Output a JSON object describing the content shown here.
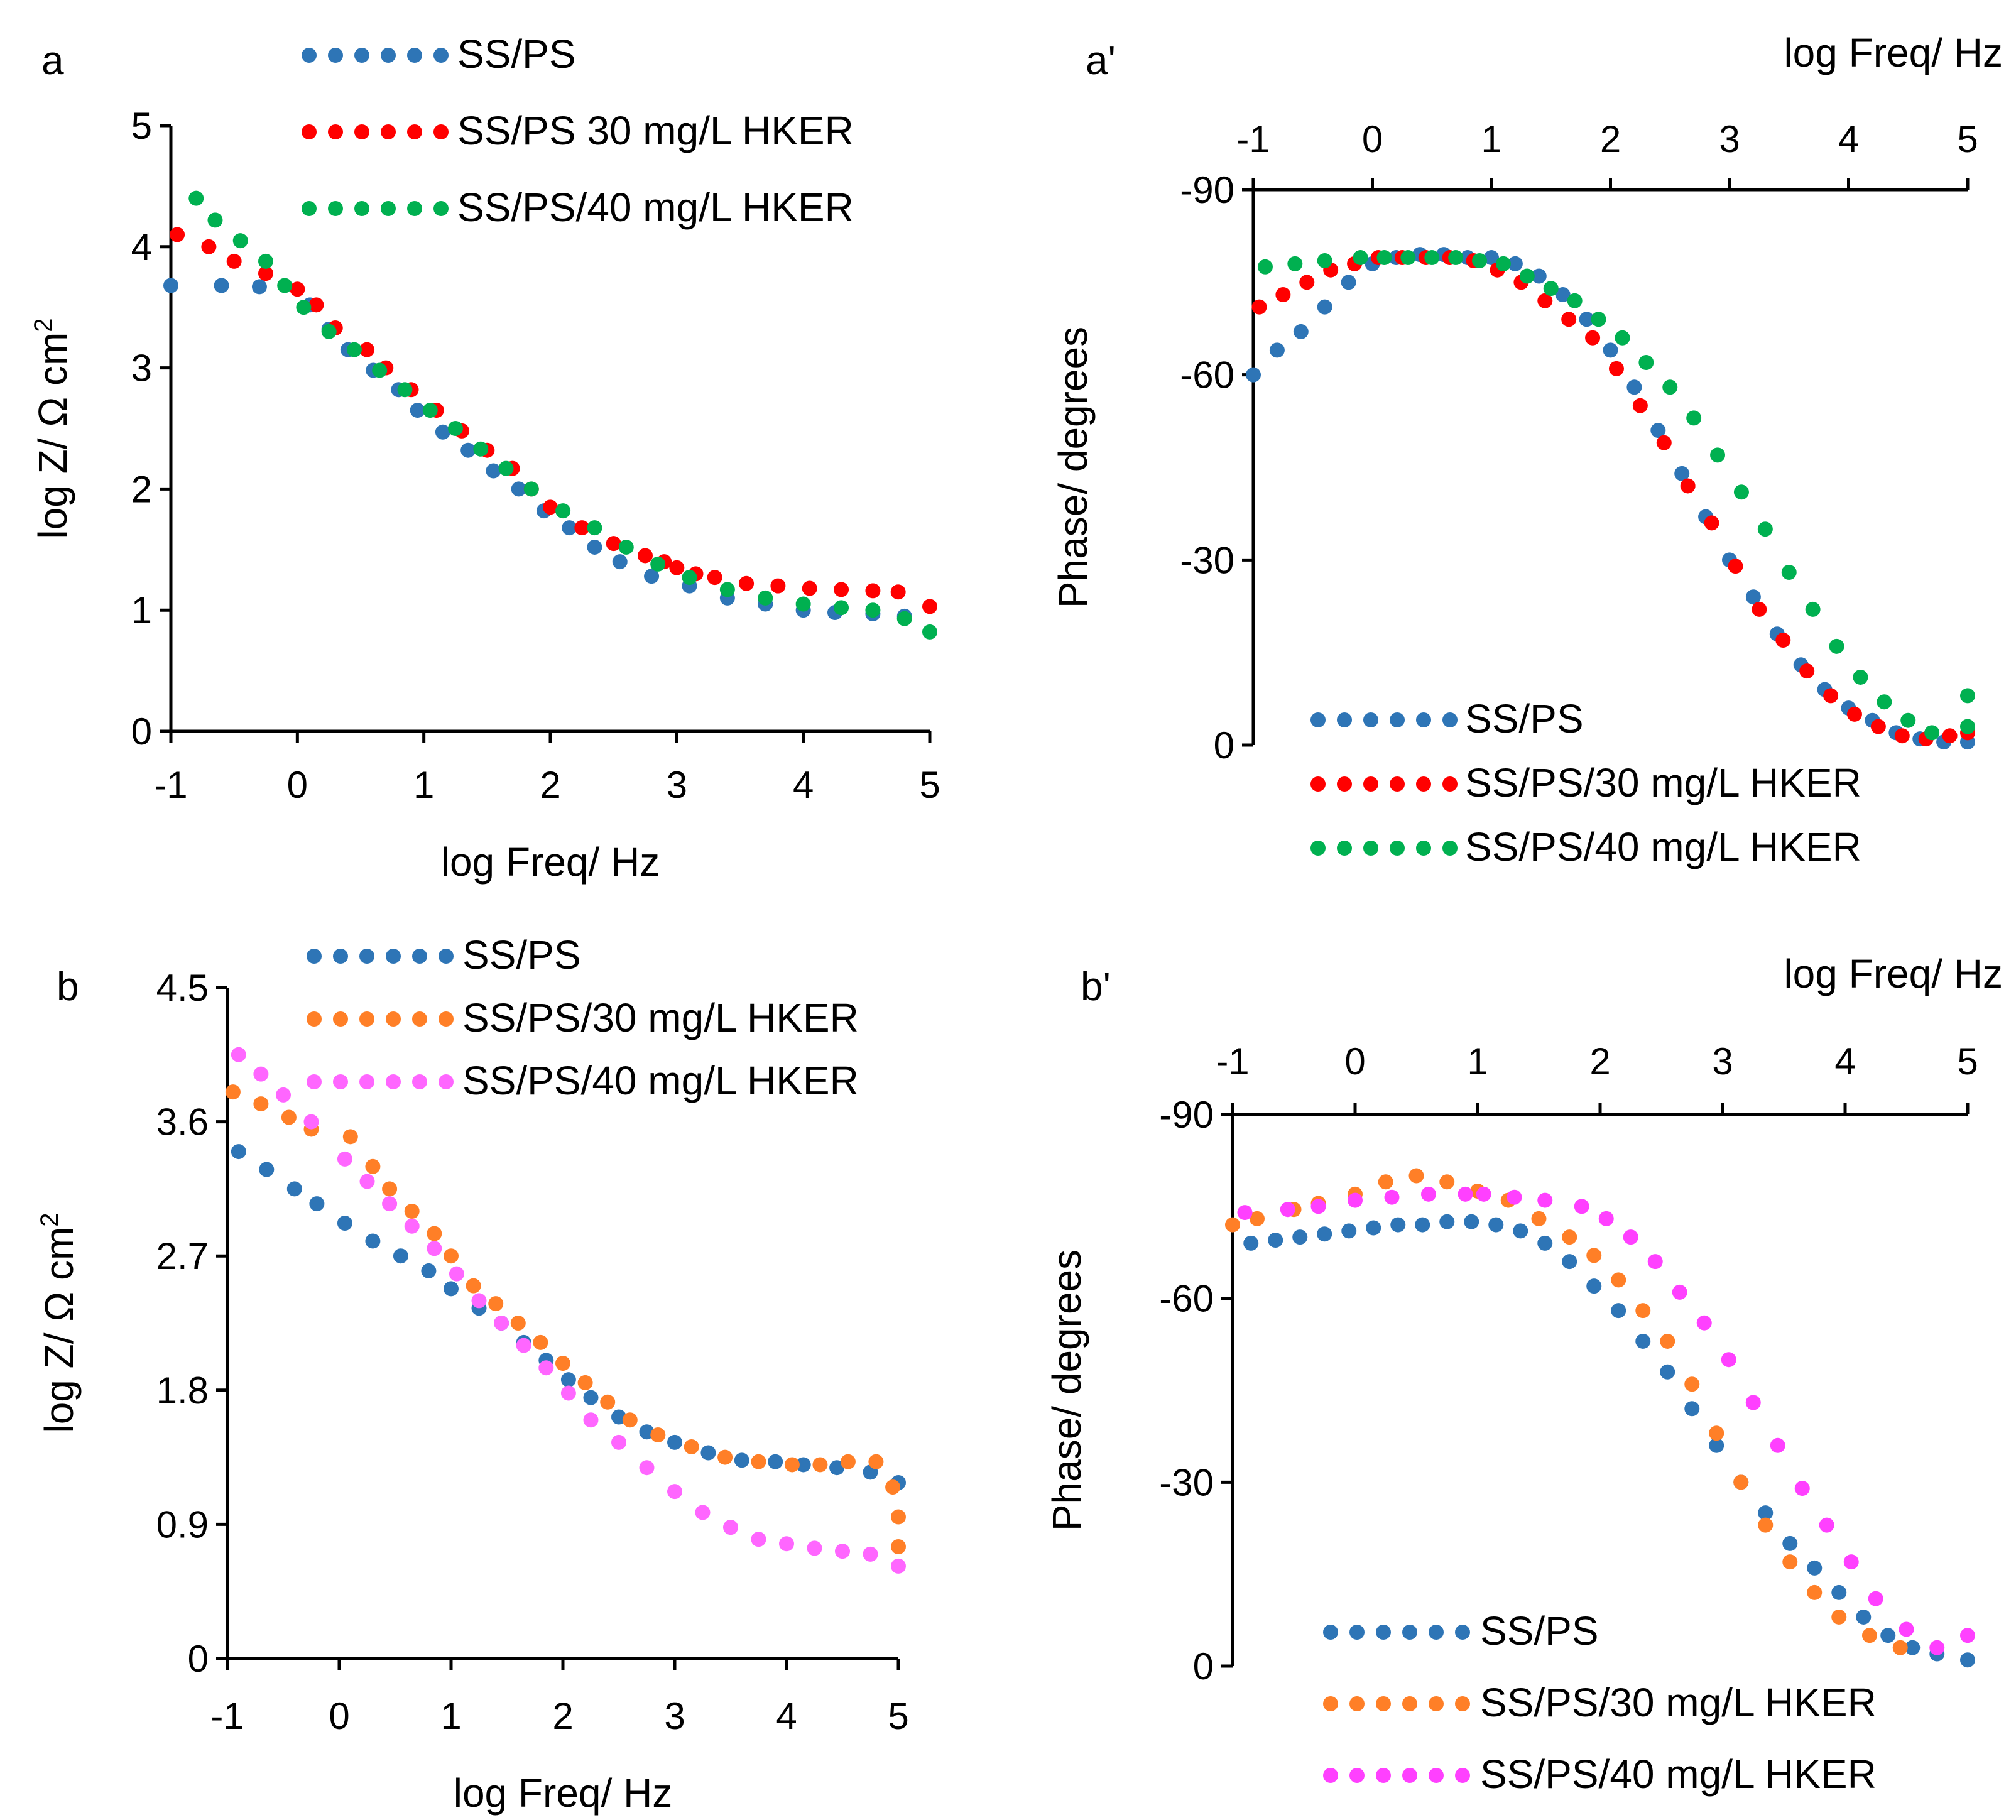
{
  "chart_data": [
    {
      "panel": "a",
      "type": "scatter",
      "xlabel": "log Freq/ Hz",
      "ylabel": "log Z/ Ω cm",
      "ylabel_sup": "2",
      "xlim": [
        -1,
        5
      ],
      "ylim": [
        0,
        5
      ],
      "xticks": [
        "-1",
        "0",
        "1",
        "2",
        "3",
        "4",
        "5"
      ],
      "yticks": [
        "0",
        "1",
        "2",
        "3",
        "4",
        "5"
      ],
      "legend": "top",
      "series": [
        {
          "name": "SS/PS",
          "color": "#2E75B6",
          "x": [
            -1.0,
            -0.6,
            -0.3,
            0.1,
            0.25,
            0.4,
            0.6,
            0.8,
            0.95,
            1.15,
            1.35,
            1.55,
            1.75,
            1.95,
            2.15,
            2.35,
            2.55,
            2.8,
            3.1,
            3.4,
            3.7,
            4.0,
            4.25,
            4.55,
            4.8
          ],
          "y": [
            3.68,
            3.68,
            3.67,
            3.52,
            3.32,
            3.15,
            2.98,
            2.82,
            2.65,
            2.47,
            2.32,
            2.15,
            2.0,
            1.82,
            1.68,
            1.52,
            1.4,
            1.28,
            1.2,
            1.1,
            1.05,
            1.0,
            0.98,
            0.97,
            0.95
          ]
        },
        {
          "name": "SS/PS 30 mg/L HKER",
          "color": "#FF0000",
          "x": [
            -0.95,
            -0.7,
            -0.5,
            -0.25,
            0.0,
            0.15,
            0.3,
            0.55,
            0.7,
            0.9,
            1.1,
            1.3,
            1.5,
            1.7,
            1.85,
            2.0,
            2.25,
            2.5,
            2.75,
            2.9,
            3.0,
            3.15,
            3.3,
            3.55,
            3.8,
            4.05,
            4.3,
            4.55,
            4.75,
            5.0
          ],
          "y": [
            4.1,
            4.0,
            3.88,
            3.78,
            3.65,
            3.52,
            3.33,
            3.15,
            3.0,
            2.82,
            2.65,
            2.48,
            2.32,
            2.17,
            2.0,
            1.85,
            1.68,
            1.55,
            1.45,
            1.4,
            1.35,
            1.3,
            1.27,
            1.22,
            1.2,
            1.18,
            1.17,
            1.16,
            1.15,
            1.03
          ]
        },
        {
          "name": "SS/PS/40 mg/L HKER",
          "color": "#00B050",
          "x": [
            -0.8,
            -0.65,
            -0.45,
            -0.25,
            -0.1,
            0.05,
            0.25,
            0.45,
            0.65,
            0.85,
            1.05,
            1.25,
            1.45,
            1.65,
            1.85,
            2.1,
            2.35,
            2.6,
            2.85,
            3.1,
            3.4,
            3.7,
            4.0,
            4.3,
            4.55,
            4.8,
            5.0
          ],
          "y": [
            4.4,
            4.22,
            4.05,
            3.88,
            3.68,
            3.5,
            3.3,
            3.15,
            2.98,
            2.82,
            2.65,
            2.5,
            2.33,
            2.17,
            2.0,
            1.82,
            1.68,
            1.52,
            1.38,
            1.27,
            1.17,
            1.1,
            1.05,
            1.02,
            1.0,
            0.93,
            0.82
          ]
        }
      ]
    },
    {
      "panel": "a'",
      "type": "scatter",
      "xlabel": "log Freq/ Hz",
      "ylabel": "Phase/ degrees",
      "xlim": [
        -1,
        5
      ],
      "ylim": [
        -90,
        0
      ],
      "xticks": [
        "-1",
        "0",
        "1",
        "2",
        "3",
        "4",
        "5"
      ],
      "yticks": [
        "-90",
        "-60",
        "-30",
        "0"
      ],
      "xaxis_position": "top",
      "legend": "bottom",
      "series": [
        {
          "name": "SS/PS",
          "color": "#2E75B6",
          "x": [
            -1.0,
            -0.8,
            -0.6,
            -0.4,
            -0.2,
            0.0,
            0.2,
            0.4,
            0.6,
            0.8,
            1.0,
            1.2,
            1.4,
            1.6,
            1.8,
            2.0,
            2.2,
            2.4,
            2.6,
            2.8,
            3.0,
            3.2,
            3.4,
            3.6,
            3.8,
            4.0,
            4.2,
            4.4,
            4.6,
            4.8,
            5.0
          ],
          "y": [
            -60,
            -64,
            -67,
            -71,
            -75,
            -78,
            -79,
            -79.5,
            -79.5,
            -79,
            -79,
            -78,
            -76,
            -73,
            -69,
            -64,
            -58,
            -51,
            -44,
            -37,
            -30,
            -24,
            -18,
            -13,
            -9,
            -6,
            -4,
            -2,
            -1,
            -0.5,
            -0.5
          ]
        },
        {
          "name": "SS/PS/30 mg/L HKER",
          "color": "#FF0000",
          "x": [
            -0.95,
            -0.75,
            -0.55,
            -0.35,
            -0.15,
            0.05,
            0.25,
            0.45,
            0.65,
            0.85,
            1.05,
            1.25,
            1.45,
            1.65,
            1.85,
            2.05,
            2.25,
            2.45,
            2.65,
            2.85,
            3.05,
            3.25,
            3.45,
            3.65,
            3.85,
            4.05,
            4.25,
            4.45,
            4.65,
            4.85,
            5.0
          ],
          "y": [
            -71,
            -73,
            -75,
            -77,
            -78,
            -79,
            -79,
            -79,
            -79,
            -78.5,
            -77,
            -75,
            -72,
            -69,
            -66,
            -61,
            -55,
            -49,
            -42,
            -36,
            -29,
            -22,
            -17,
            -12,
            -8,
            -5,
            -3,
            -1.5,
            -1,
            -1.5,
            -2
          ]
        },
        {
          "name": "SS/PS/40 mg/L HKER",
          "color": "#00B050",
          "x": [
            -0.9,
            -0.65,
            -0.4,
            -0.1,
            0.1,
            0.3,
            0.5,
            0.7,
            0.9,
            1.1,
            1.3,
            1.5,
            1.7,
            1.9,
            2.1,
            2.3,
            2.5,
            2.7,
            2.9,
            3.1,
            3.3,
            3.5,
            3.7,
            3.9,
            4.1,
            4.3,
            4.5,
            4.7,
            5.0,
            5.0
          ],
          "y": [
            -77.5,
            -78,
            -78.5,
            -79,
            -79,
            -79,
            -79,
            -79,
            -78.5,
            -78,
            -76,
            -74,
            -72,
            -69,
            -66,
            -62,
            -58,
            -53,
            -47,
            -41,
            -35,
            -28,
            -22,
            -16,
            -11,
            -7,
            -4,
            -2,
            -3,
            -8
          ]
        }
      ]
    },
    {
      "panel": "b",
      "type": "scatter",
      "xlabel": "log Freq/ Hz",
      "ylabel": "log Z/ Ω cm",
      "ylabel_sup": "2",
      "xlim": [
        -1,
        5
      ],
      "ylim": [
        0,
        4.5
      ],
      "xticks": [
        "-1",
        "0",
        "1",
        "2",
        "3",
        "4",
        "5"
      ],
      "yticks": [
        "0",
        "0.9",
        "1.8",
        "2.7",
        "3.6",
        "4.5"
      ],
      "legend": "top",
      "series": [
        {
          "name": "SS/PS",
          "color": "#2E75B6",
          "x": [
            -0.9,
            -0.65,
            -0.4,
            -0.2,
            0.05,
            0.3,
            0.55,
            0.8,
            1.0,
            1.25,
            1.45,
            1.65,
            1.85,
            2.05,
            2.25,
            2.5,
            2.75,
            3.0,
            3.3,
            3.6,
            3.9,
            4.15,
            4.45,
            4.75,
            5.0
          ],
          "y": [
            3.4,
            3.28,
            3.15,
            3.05,
            2.92,
            2.8,
            2.7,
            2.6,
            2.48,
            2.35,
            2.25,
            2.12,
            2.0,
            1.87,
            1.75,
            1.62,
            1.52,
            1.45,
            1.38,
            1.33,
            1.32,
            1.3,
            1.28,
            1.25,
            1.18
          ]
        },
        {
          "name": "SS/PS/30 mg/L HKER",
          "color": "#FF7F27",
          "x": [
            -0.95,
            -0.7,
            -0.45,
            -0.25,
            0.1,
            0.3,
            0.45,
            0.65,
            0.85,
            1.0,
            1.2,
            1.4,
            1.6,
            1.8,
            2.0,
            2.2,
            2.4,
            2.6,
            2.85,
            3.15,
            3.45,
            3.75,
            4.05,
            4.3,
            4.55,
            4.8,
            4.95,
            5.0,
            5.0
          ],
          "y": [
            3.8,
            3.72,
            3.63,
            3.55,
            3.5,
            3.3,
            3.15,
            3.0,
            2.85,
            2.7,
            2.5,
            2.38,
            2.25,
            2.12,
            1.98,
            1.85,
            1.72,
            1.6,
            1.5,
            1.42,
            1.35,
            1.32,
            1.3,
            1.3,
            1.32,
            1.32,
            1.15,
            0.95,
            0.75
          ]
        },
        {
          "name": "SS/PS/40 mg/L HKER",
          "color": "#FF66FF",
          "x": [
            -0.9,
            -0.7,
            -0.5,
            -0.25,
            0.05,
            0.25,
            0.45,
            0.65,
            0.85,
            1.05,
            1.25,
            1.45,
            1.65,
            1.85,
            2.05,
            2.25,
            2.5,
            2.75,
            3.0,
            3.25,
            3.5,
            3.75,
            4.0,
            4.25,
            4.5,
            4.75,
            5.0
          ],
          "y": [
            4.05,
            3.92,
            3.78,
            3.6,
            3.35,
            3.2,
            3.05,
            2.9,
            2.75,
            2.58,
            2.4,
            2.25,
            2.1,
            1.95,
            1.78,
            1.6,
            1.45,
            1.28,
            1.12,
            0.98,
            0.88,
            0.8,
            0.77,
            0.74,
            0.72,
            0.7,
            0.62
          ]
        }
      ]
    },
    {
      "panel": "b'",
      "type": "scatter",
      "xlabel": "log Freq/ Hz",
      "ylabel": "Phase/ degrees",
      "xlim": [
        -1,
        5
      ],
      "ylim": [
        -90,
        0
      ],
      "xticks": [
        "-1",
        "0",
        "1",
        "2",
        "3",
        "4",
        "5"
      ],
      "yticks": [
        "-90",
        "-60",
        "-30",
        "0"
      ],
      "xaxis_position": "top",
      "legend": "bottom",
      "series": [
        {
          "name": "SS/PS",
          "color": "#2E75B6",
          "x": [
            -0.85,
            -0.65,
            -0.45,
            -0.25,
            -0.05,
            0.15,
            0.35,
            0.55,
            0.75,
            0.95,
            1.15,
            1.35,
            1.55,
            1.75,
            1.95,
            2.15,
            2.35,
            2.55,
            2.75,
            2.95,
            3.15,
            3.35,
            3.55,
            3.75,
            3.95,
            4.15,
            4.35,
            4.55,
            4.75,
            5.0
          ],
          "y": [
            -69,
            -69.5,
            -70,
            -70.5,
            -71,
            -71.5,
            -72,
            -72,
            -72.5,
            -72.5,
            -72,
            -71,
            -69,
            -66,
            -62,
            -58,
            -53,
            -48,
            -42,
            -36,
            -30,
            -25,
            -20,
            -16,
            -12,
            -8,
            -5,
            -3,
            -2,
            -1
          ]
        },
        {
          "name": "SS/PS/30 mg/L HKER",
          "color": "#FF7F27",
          "x": [
            -1.0,
            -0.8,
            -0.5,
            -0.3,
            0.0,
            0.25,
            0.5,
            0.75,
            1.0,
            1.25,
            1.5,
            1.75,
            1.95,
            2.15,
            2.35,
            2.55,
            2.75,
            2.95,
            3.15,
            3.35,
            3.55,
            3.75,
            3.95,
            4.2,
            4.45
          ],
          "y": [
            -72,
            -73,
            -74.5,
            -75.5,
            -77,
            -79,
            -80,
            -79,
            -77.5,
            -76,
            -73,
            -70,
            -67,
            -63,
            -58,
            -53,
            -46,
            -38,
            -30,
            -23,
            -17,
            -12,
            -8,
            -5,
            -3
          ]
        },
        {
          "name": "SS/PS/40 mg/L HKER",
          "color": "#FF40FF",
          "x": [
            -0.9,
            -0.55,
            -0.3,
            0.0,
            0.3,
            0.6,
            0.9,
            1.05,
            1.3,
            1.55,
            1.85,
            2.05,
            2.25,
            2.45,
            2.65,
            2.85,
            3.05,
            3.25,
            3.45,
            3.65,
            3.85,
            4.05,
            4.25,
            4.5,
            4.75,
            5.0
          ],
          "y": [
            -74,
            -74.5,
            -75,
            -76,
            -76.5,
            -77,
            -77,
            -77,
            -76.5,
            -76,
            -75,
            -73,
            -70,
            -66,
            -61,
            -56,
            -50,
            -43,
            -36,
            -29,
            -23,
            -17,
            -11,
            -6,
            -3,
            -5
          ]
        }
      ]
    }
  ],
  "panels": {
    "a": "a",
    "a_prime": "a'",
    "b": "b",
    "b_prime": "b'"
  }
}
